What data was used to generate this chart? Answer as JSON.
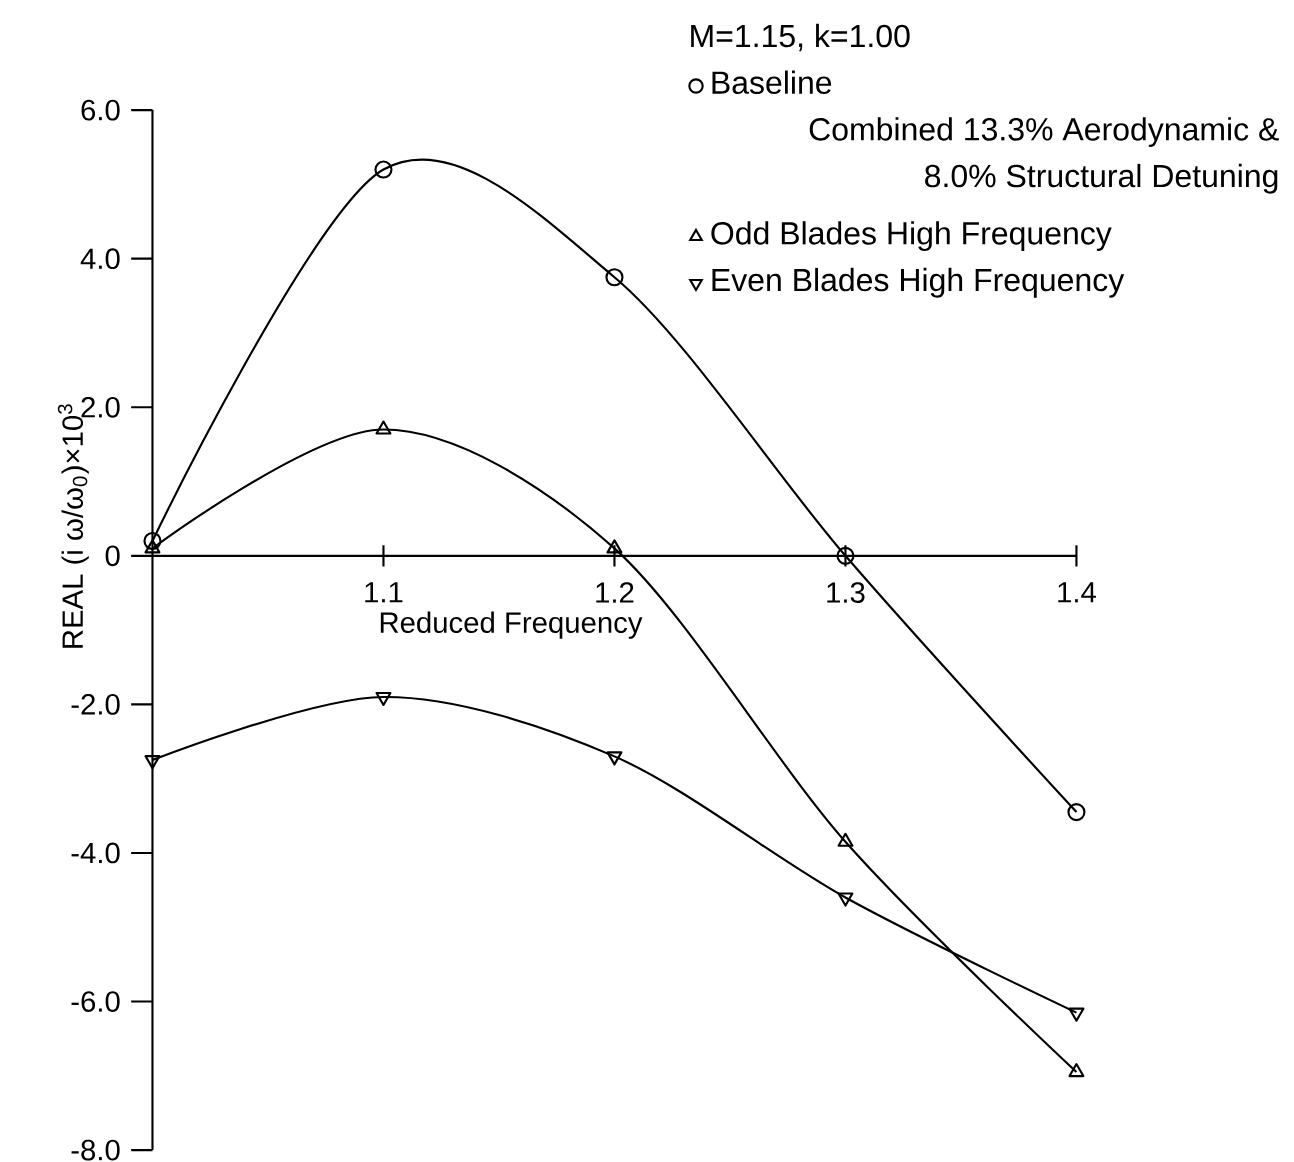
{
  "chart_data": {
    "type": "line",
    "legend_title": "M=1.15, k=1.00",
    "annotations": [
      "Combined 13.3% Aerodynamic & 8.0% Structural Detuning"
    ],
    "xlabel": "Reduced Frequency",
    "ylabel": "REAL (i ω/ω$_{0}$)×10$^{3}$",
    "x": [
      1.0,
      1.1,
      1.2,
      1.3,
      1.4
    ],
    "series": [
      {
        "name": "Baseline",
        "color": "#000000",
        "marker": "circle",
        "values": [
          0.2,
          5.2,
          3.75,
          0.0,
          -3.45
        ]
      },
      {
        "name": "Odd Blades High Frequency",
        "color": "#000000",
        "marker": "triangle",
        "values": [
          0.1,
          1.7,
          0.1,
          -3.85,
          -6.95
        ]
      },
      {
        "name": "Even Blades High Frequency",
        "color": "#000000",
        "marker": "triangle down",
        "values": [
          -2.75,
          -1.9,
          -2.7,
          -4.6,
          -6.15
        ]
      }
    ],
    "xlim": [
      1.0,
      1.4
    ],
    "xticks": [
      1.1,
      1.2,
      1.3,
      1.4
    ],
    "ylim": [
      -8,
      6
    ],
    "yticks": [
      {
        "value": -8,
        "label": "-8.0"
      },
      {
        "value": -6,
        "label": "-6.0"
      },
      {
        "value": -4,
        "label": "-4.0"
      },
      {
        "value": -2,
        "label": "-2.0"
      },
      0,
      {
        "value": 2,
        "label": "2.0"
      },
      {
        "value": 4,
        "label": "4.0"
      },
      {
        "value": 6,
        "label": "6.0"
      }
    ],
    "grid": false,
    "legend": "top right",
    "line_style": "solid"
  }
}
